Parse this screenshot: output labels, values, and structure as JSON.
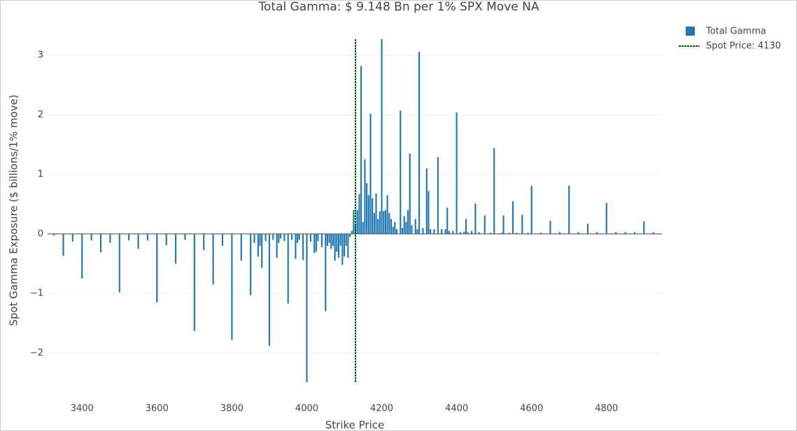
{
  "chart_data": {
    "type": "bar",
    "title": "Total Gamma: $ 9.148  Bn per 1% SPX Move  NA",
    "x_label": "Strike Price",
    "y_label": "Spot Gamma Exposure ($ billions/1% move)",
    "x": [
      3325,
      3350,
      3375,
      3400,
      3425,
      3450,
      3475,
      3500,
      3525,
      3550,
      3575,
      3600,
      3625,
      3650,
      3675,
      3700,
      3725,
      3750,
      3775,
      3800,
      3825,
      3850,
      3860,
      3870,
      3875,
      3880,
      3890,
      3900,
      3910,
      3920,
      3925,
      3930,
      3940,
      3950,
      3960,
      3970,
      3975,
      3980,
      3990,
      4000,
      4010,
      4020,
      4025,
      4030,
      4040,
      4050,
      4055,
      4060,
      4065,
      4070,
      4075,
      4080,
      4085,
      4090,
      4095,
      4100,
      4105,
      4110,
      4115,
      4120,
      4125,
      4130,
      4135,
      4140,
      4145,
      4150,
      4155,
      4160,
      4165,
      4170,
      4175,
      4180,
      4185,
      4190,
      4195,
      4200,
      4205,
      4210,
      4215,
      4220,
      4225,
      4230,
      4235,
      4240,
      4250,
      4255,
      4260,
      4265,
      4270,
      4275,
      4280,
      4290,
      4295,
      4300,
      4310,
      4320,
      4325,
      4330,
      4340,
      4350,
      4360,
      4370,
      4375,
      4380,
      4390,
      4400,
      4410,
      4420,
      4425,
      4430,
      4440,
      4450,
      4460,
      4475,
      4490,
      4500,
      4520,
      4525,
      4540,
      4550,
      4560,
      4575,
      4590,
      4600,
      4625,
      4650,
      4675,
      4700,
      4725,
      4750,
      4775,
      4800,
      4825,
      4850,
      4875,
      4900,
      4925,
      4950
    ],
    "series": [
      {
        "name": "Total Gamma",
        "color": "#1f77b4",
        "values": [
          -0.03,
          -0.37,
          -0.13,
          -0.75,
          -0.11,
          -0.31,
          -0.15,
          -0.98,
          -0.11,
          -0.25,
          -0.11,
          -1.15,
          -0.19,
          -0.5,
          -0.1,
          -1.63,
          -0.27,
          -0.85,
          -0.2,
          -1.78,
          -0.45,
          -1.03,
          -0.15,
          -0.38,
          -0.2,
          -0.57,
          -0.12,
          -1.88,
          -0.1,
          -0.4,
          -0.15,
          -0.08,
          -0.12,
          -1.17,
          -0.1,
          -0.42,
          -0.15,
          -0.1,
          -0.44,
          -2.49,
          -0.13,
          -0.32,
          -0.3,
          -0.12,
          -0.22,
          -1.3,
          -0.2,
          -0.15,
          -0.25,
          -0.2,
          -0.45,
          -0.3,
          -0.4,
          -0.2,
          -0.52,
          -0.38,
          -0.2,
          -0.4,
          -0.05,
          0.05,
          0.4,
          0.15,
          0.4,
          0.67,
          2.82,
          0.2,
          1.25,
          0.85,
          0.65,
          2.02,
          0.6,
          0.35,
          0.68,
          0.25,
          0.38,
          3.27,
          0.38,
          0.4,
          0.65,
          0.35,
          0.25,
          0.12,
          0.2,
          0.08,
          2.07,
          0.1,
          0.3,
          0.2,
          0.4,
          1.35,
          0.15,
          0.25,
          0.08,
          3.06,
          0.1,
          1.1,
          0.72,
          0.08,
          0.08,
          1.29,
          0.08,
          0.08,
          0.44,
          0.05,
          0.05,
          2.04,
          0.03,
          0.04,
          0.25,
          0.03,
          0.05,
          0.51,
          0.03,
          0.31,
          0.02,
          1.44,
          0.02,
          0.31,
          0.02,
          0.55,
          0.02,
          0.32,
          0.02,
          0.81,
          0.02,
          0.22,
          0.03,
          0.81,
          0.03,
          0.17,
          0.03,
          0.52,
          0.03,
          0.03,
          0.03,
          0.21,
          0.03,
          0.04
        ]
      },
      {
        "name": "Spot Price:  4130",
        "color": "#006400",
        "dash": true,
        "x_value": 4130
      }
    ],
    "xlim": [
      3308,
      4948
    ],
    "ylim": [
      -2.5,
      3.3
    ],
    "xticks": [
      3400,
      3600,
      3800,
      4000,
      4200,
      4400,
      4600,
      4800
    ],
    "yticks": [
      {
        "value": -2,
        "label": "−2"
      },
      {
        "value": -1,
        "label": "−1"
      },
      0,
      1,
      2,
      3
    ],
    "grid": true,
    "legend": "top-right"
  }
}
